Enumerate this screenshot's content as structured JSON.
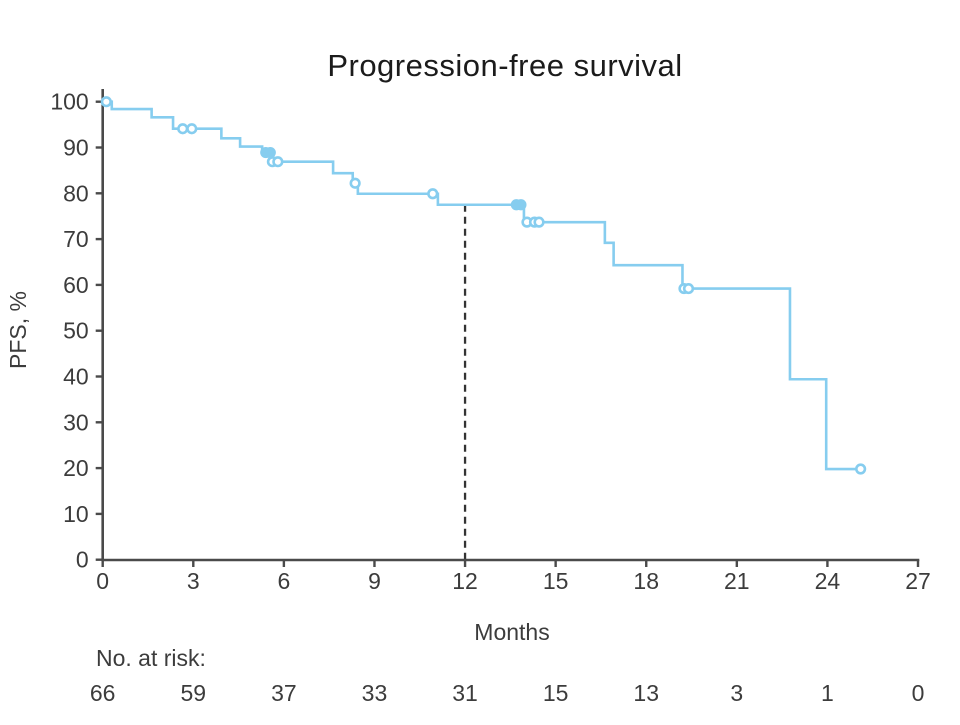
{
  "chart_data": {
    "type": "line",
    "subtype": "kaplan-meier-step",
    "title": "Progression-free survival",
    "xlabel": "Months",
    "ylabel": "PFS, %",
    "xlim": [
      0,
      27
    ],
    "ylim": [
      0,
      100
    ],
    "x_ticks": [
      0,
      3,
      6,
      9,
      12,
      15,
      18,
      21,
      24,
      27
    ],
    "y_ticks": [
      0,
      10,
      20,
      30,
      40,
      50,
      60,
      70,
      80,
      90,
      100
    ],
    "grid": false,
    "legend": "none",
    "curve_color": "#86cdef",
    "axis_color": "#4a4a4a",
    "text_color": "#3c3c3c",
    "title_color": "#1b1b1b",
    "reference_line_color": "#333333",
    "steps": [
      [
        0,
        100
      ],
      [
        0.3,
        98.4
      ],
      [
        1.62,
        96.6
      ],
      [
        2.33,
        94.1
      ],
      [
        3.93,
        92.0
      ],
      [
        4.55,
        90.2
      ],
      [
        5.28,
        88.9
      ],
      [
        5.55,
        86.9
      ],
      [
        7.63,
        84.4
      ],
      [
        8.28,
        82.2
      ],
      [
        8.45,
        79.9
      ],
      [
        11.1,
        77.5
      ],
      [
        13.95,
        73.7
      ],
      [
        16.63,
        69.2
      ],
      [
        16.92,
        64.3
      ],
      [
        19.2,
        59.2
      ],
      [
        22.76,
        39.4
      ],
      [
        23.96,
        19.8
      ]
    ],
    "end_time": 25.15,
    "censors": [
      {
        "t": 0.12,
        "p": 100,
        "filled": false
      },
      {
        "t": 2.65,
        "p": 94.1,
        "filled": false
      },
      {
        "t": 2.95,
        "p": 94.1,
        "filled": false
      },
      {
        "t": 5.4,
        "p": 88.9,
        "filled": true
      },
      {
        "t": 5.55,
        "p": 88.9,
        "filled": true
      },
      {
        "t": 5.62,
        "p": 86.9,
        "filled": false
      },
      {
        "t": 5.8,
        "p": 86.9,
        "filled": false
      },
      {
        "t": 8.36,
        "p": 82.2,
        "filled": false
      },
      {
        "t": 10.93,
        "p": 79.9,
        "filled": false
      },
      {
        "t": 13.7,
        "p": 77.5,
        "filled": true
      },
      {
        "t": 13.85,
        "p": 77.5,
        "filled": true
      },
      {
        "t": 14.05,
        "p": 73.7,
        "filled": false
      },
      {
        "t": 14.3,
        "p": 73.7,
        "filled": false
      },
      {
        "t": 14.45,
        "p": 73.7,
        "filled": false
      },
      {
        "t": 19.25,
        "p": 59.2,
        "filled": false
      },
      {
        "t": 19.4,
        "p": 59.2,
        "filled": false
      },
      {
        "t": 25.1,
        "p": 19.8,
        "filled": false
      }
    ],
    "reference_line": {
      "x": 12,
      "style": "dashed",
      "from_p": 77.5,
      "to_p": 0
    },
    "at_risk": {
      "label": "No. at risk:",
      "times": [
        0,
        3,
        6,
        9,
        12,
        15,
        18,
        21,
        24,
        27
      ],
      "counts": [
        66,
        59,
        37,
        33,
        31,
        15,
        13,
        3,
        1,
        0
      ]
    }
  }
}
